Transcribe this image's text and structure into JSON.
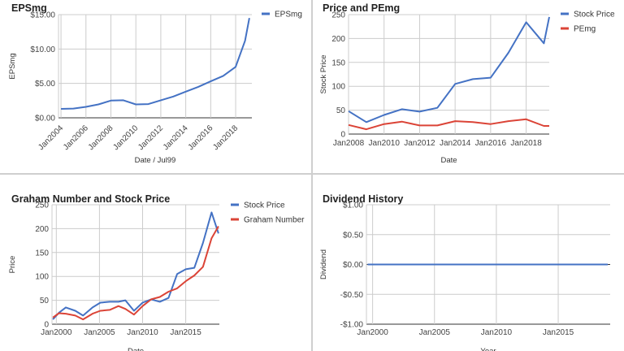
{
  "chart_data": [
    {
      "type": "line",
      "title": "EPSmg",
      "xlabel": "Date / Jul99",
      "ylabel": "EPSmg",
      "x": [
        2004,
        2005,
        2006,
        2007,
        2008,
        2009,
        2010,
        2011,
        2012,
        2013,
        2014,
        2015,
        2016,
        2017,
        2018,
        2018.75,
        2019.1
      ],
      "series": [
        {
          "name": "EPSmg",
          "color": "#4472c4",
          "values": [
            1.3,
            1.35,
            1.6,
            1.95,
            2.5,
            2.55,
            1.95,
            2.0,
            2.55,
            3.1,
            3.8,
            4.5,
            5.3,
            6.1,
            7.4,
            11.2,
            14.5
          ]
        }
      ],
      "xlim": [
        2003.8,
        2019.3
      ],
      "ylim": [
        0,
        15
      ],
      "yticks": [
        0,
        5,
        10,
        15
      ],
      "ytick_labels": [
        "$0.00",
        "$5.00",
        "$10.00",
        "$15.00"
      ],
      "xticks": [
        2004,
        2006,
        2008,
        2010,
        2012,
        2014,
        2016,
        2018
      ],
      "xtick_labels": [
        "Jan2004",
        "Jan2006",
        "Jan2008",
        "Jan2010",
        "Jan2012",
        "Jan2014",
        "Jan2016",
        "Jan2018"
      ],
      "legend": "top-right",
      "grid": true
    },
    {
      "type": "line",
      "title": "Price and PEmg",
      "xlabel": "Date",
      "ylabel": "Stock Price",
      "x": [
        2008,
        2009,
        2010,
        2011,
        2012,
        2013,
        2014,
        2015,
        2016,
        2017,
        2018,
        2019,
        2019.3
      ],
      "series": [
        {
          "name": "Stock Price",
          "color": "#4472c4",
          "values": [
            48,
            25,
            40,
            52,
            47,
            55,
            105,
            115,
            118,
            170,
            234,
            190,
            245
          ]
        },
        {
          "name": "PEmg",
          "color": "#db4437",
          "values": [
            19,
            10,
            21,
            26,
            18,
            18,
            27,
            25,
            21,
            27,
            31,
            17,
            17
          ]
        }
      ],
      "xlim": [
        2008,
        2019.3
      ],
      "ylim": [
        0,
        250
      ],
      "yticks": [
        0,
        50,
        100,
        150,
        200,
        250
      ],
      "ytick_labels": [
        "0",
        "50",
        "100",
        "150",
        "200",
        "250"
      ],
      "xticks": [
        2008,
        2010,
        2012,
        2014,
        2016,
        2018
      ],
      "xtick_labels": [
        "Jan2008",
        "Jan2010",
        "Jan2012",
        "Jan2014",
        "Jan2016",
        "Jan2018"
      ],
      "legend": "top-right",
      "grid": true
    },
    {
      "type": "line",
      "title": "Graham Number and Stock Price",
      "xlabel": "Date",
      "ylabel": "Price",
      "x": [
        1999.6,
        2000.3,
        2001.1,
        2002.2,
        2003.1,
        2004.2,
        2005.1,
        2006.2,
        2007.2,
        2008,
        2009,
        2010,
        2011,
        2012,
        2013,
        2014,
        2015,
        2016,
        2017,
        2018,
        2018.8
      ],
      "series": [
        {
          "name": "Stock Price",
          "color": "#4472c4",
          "values": [
            10,
            24,
            35,
            28,
            18,
            35,
            45,
            47,
            47,
            50,
            28,
            45,
            52,
            47,
            55,
            105,
            115,
            118,
            170,
            234,
            190
          ]
        },
        {
          "name": "Graham Number",
          "color": "#db4437",
          "values": [
            14,
            23,
            22,
            18,
            10,
            22,
            28,
            30,
            38,
            32,
            20,
            38,
            52,
            57,
            68,
            75,
            90,
            102,
            120,
            180,
            205
          ]
        }
      ],
      "xlim": [
        1999.5,
        2018.9
      ],
      "ylim": [
        0,
        250
      ],
      "yticks": [
        0,
        50,
        100,
        150,
        200,
        250
      ],
      "ytick_labels": [
        "0",
        "50",
        "100",
        "150",
        "200",
        "250"
      ],
      "xticks": [
        2000,
        2005,
        2010,
        2015
      ],
      "xtick_labels": [
        "Jan2000",
        "Jan2005",
        "Jan2010",
        "Jan2015"
      ],
      "legend": "top-right",
      "grid": true
    },
    {
      "type": "line",
      "title": "Dividend History",
      "xlabel": "Year",
      "ylabel": "Dividend",
      "x": [
        1999.6,
        2019
      ],
      "series": [
        {
          "name": "",
          "color": "#4472c4",
          "values": [
            0,
            0
          ]
        }
      ],
      "xlim": [
        1999.5,
        2019.2
      ],
      "ylim": [
        -1,
        1
      ],
      "yticks": [
        -1,
        -0.5,
        0,
        0.5,
        1
      ],
      "ytick_labels": [
        "-$1.00",
        "-$0.50",
        "$0.00",
        "$0.50",
        "$1.00"
      ],
      "xticks": [
        2000,
        2005,
        2010,
        2015
      ],
      "xtick_labels": [
        "Jan2000",
        "Jan2005",
        "Jan2010",
        "Jan2015"
      ],
      "legend": "none",
      "grid": true
    }
  ]
}
